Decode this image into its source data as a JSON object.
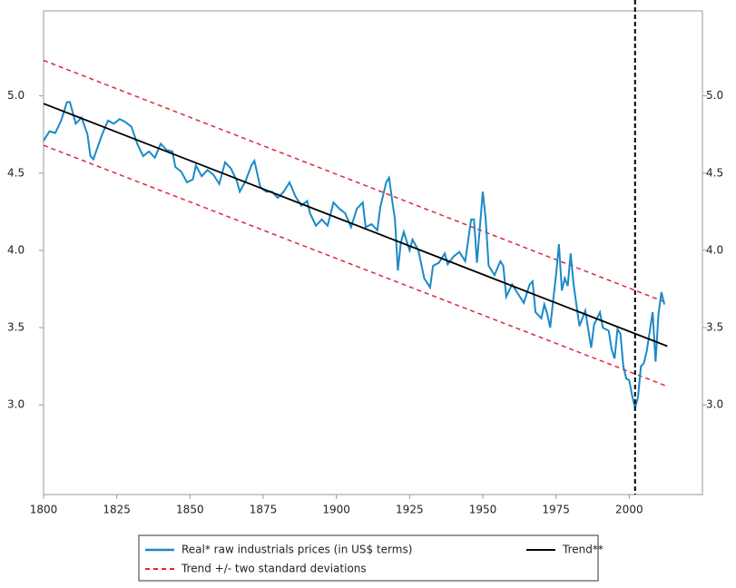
{
  "chart_data": {
    "type": "line",
    "x": [
      1800,
      1802,
      1804,
      1806,
      1808,
      1809,
      1811,
      1813,
      1815,
      1816,
      1817,
      1820,
      1822,
      1824,
      1826,
      1828,
      1830,
      1832,
      1834,
      1836,
      1838,
      1840,
      1842,
      1844,
      1845,
      1847,
      1849,
      1851,
      1852,
      1854,
      1856,
      1858,
      1860,
      1862,
      1864,
      1866,
      1867,
      1869,
      1871,
      1872,
      1874,
      1876,
      1878,
      1880,
      1882,
      1884,
      1886,
      1888,
      1890,
      1891,
      1893,
      1895,
      1897,
      1899,
      1901,
      1903,
      1905,
      1907,
      1909,
      1910,
      1912,
      1914,
      1915,
      1917,
      1918,
      1919,
      1920,
      1921,
      1922,
      1923,
      1925,
      1926,
      1928,
      1930,
      1932,
      1933,
      1935,
      1937,
      1938,
      1940,
      1942,
      1944,
      1946,
      1947,
      1948,
      1950,
      1951,
      1952,
      1954,
      1956,
      1957,
      1958,
      1960,
      1962,
      1964,
      1966,
      1967,
      1968,
      1970,
      1971,
      1972,
      1973,
      1975,
      1976,
      1977,
      1978,
      1979,
      1980,
      1981,
      1983,
      1985,
      1986,
      1987,
      1988,
      1990,
      1991,
      1993,
      1994,
      1995,
      1996,
      1997,
      1998,
      1999,
      2000,
      2001,
      2002,
      2003,
      2004,
      2005,
      2006,
      2008,
      2009,
      2010,
      2011,
      2012
    ],
    "series": [
      {
        "name": "Real* raw industrials prices (in US$ terms)",
        "color": "#1a8ac6",
        "values": [
          4.71,
          4.77,
          4.76,
          4.84,
          4.96,
          4.96,
          4.82,
          4.86,
          4.75,
          4.61,
          4.59,
          4.75,
          4.84,
          4.82,
          4.85,
          4.83,
          4.8,
          4.69,
          4.61,
          4.64,
          4.6,
          4.69,
          4.65,
          4.64,
          4.54,
          4.51,
          4.44,
          4.46,
          4.55,
          4.48,
          4.52,
          4.49,
          4.43,
          4.57,
          4.53,
          4.45,
          4.38,
          4.45,
          4.55,
          4.58,
          4.41,
          4.38,
          4.38,
          4.34,
          4.38,
          4.44,
          4.35,
          4.29,
          4.32,
          4.24,
          4.16,
          4.2,
          4.16,
          4.31,
          4.27,
          4.24,
          4.15,
          4.27,
          4.31,
          4.15,
          4.17,
          4.13,
          4.28,
          4.44,
          4.47,
          4.33,
          4.2,
          3.87,
          4.05,
          4.12,
          4.0,
          4.07,
          4.0,
          3.82,
          3.76,
          3.9,
          3.92,
          3.98,
          3.91,
          3.96,
          3.99,
          3.93,
          4.2,
          4.2,
          3.92,
          4.38,
          4.2,
          3.9,
          3.84,
          3.93,
          3.9,
          3.7,
          3.78,
          3.72,
          3.66,
          3.78,
          3.8,
          3.6,
          3.56,
          3.65,
          3.59,
          3.5,
          3.84,
          4.04,
          3.74,
          3.82,
          3.77,
          3.98,
          3.78,
          3.51,
          3.61,
          3.49,
          3.37,
          3.52,
          3.6,
          3.5,
          3.48,
          3.36,
          3.3,
          3.49,
          3.46,
          3.25,
          3.17,
          3.16,
          3.06,
          2.98,
          3.05,
          3.25,
          3.27,
          3.35,
          3.6,
          3.28,
          3.59,
          3.73,
          3.65
        ]
      }
    ],
    "trend": {
      "name": "Trend**",
      "color": "#000000",
      "x": [
        1800,
        2013
      ],
      "values": [
        4.95,
        3.38
      ]
    },
    "band": {
      "name": "Trend +/- two standard deviations",
      "color": "#e0263a",
      "x": [
        1800,
        2013
      ],
      "upper": [
        5.23,
        3.66
      ],
      "lower": [
        4.68,
        3.12
      ]
    },
    "vline": {
      "x": 2002,
      "color": "#000000"
    },
    "xlim": [
      1800,
      2025
    ],
    "ylim": [
      2.42,
      5.55
    ],
    "xticks": [
      1800,
      1825,
      1850,
      1875,
      1900,
      1925,
      1950,
      1975,
      2000
    ],
    "yticks": [
      {
        "value": 3,
        "label": "3.0"
      },
      3.5,
      {
        "value": 4,
        "label": "4.0"
      },
      4.5,
      {
        "value": 5,
        "label": "5.0"
      }
    ]
  }
}
